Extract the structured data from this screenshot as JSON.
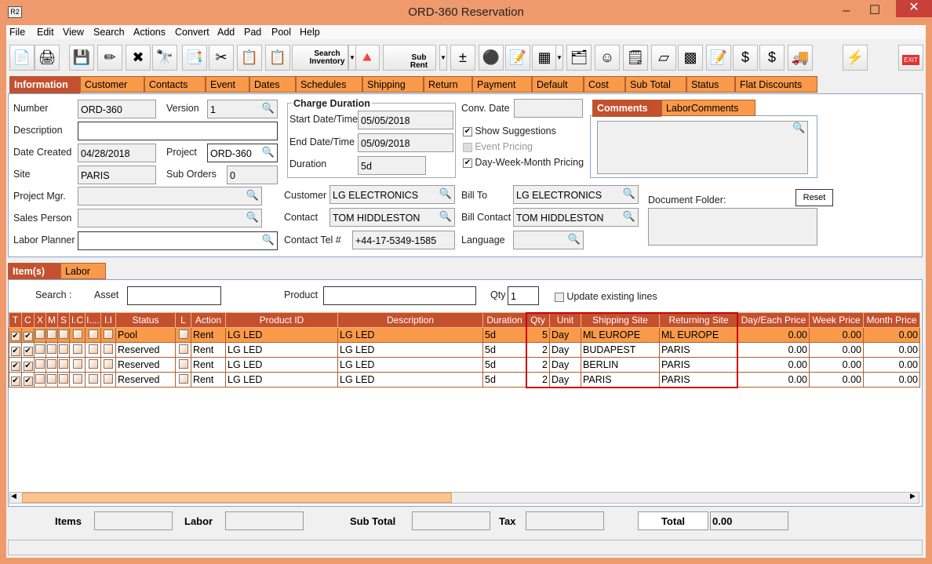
{
  "window": {
    "title": "ORD-360 Reservation",
    "app_icon": "R2",
    "minimize": "–",
    "maximize": "☐",
    "close": "✕"
  },
  "menu": [
    "File",
    "Edit",
    "View",
    "Search",
    "Actions",
    "Convert",
    "Add",
    "Pad",
    "Pool",
    "Help"
  ],
  "toolbar": {
    "search_inventory": "Search Inventory",
    "sub_rent": "Sub Rent",
    "exit": "EXIT",
    "icons": [
      "new-document-icon",
      "print-icon",
      "save-icon",
      "edit-pencil-icon",
      "delete-x-icon",
      "binoculars-icon",
      "copy-convert-icon",
      "cut-scissors-icon",
      "copy-icon",
      "paste-icon",
      "search-inventory-icon",
      "shapes-icon",
      "sub-rent-factory-icon",
      "add-remove-icon",
      "balls-icon",
      "notepad-icon",
      "calculator-icon",
      "hierarchy-icon",
      "smiley-icon",
      "notes-clock-icon",
      "eraser-icon",
      "cubes-icon",
      "form-pencil-icon",
      "money-arrow-icon",
      "money-notes-icon",
      "truck-icon",
      "lightning-icon"
    ]
  },
  "tabs": [
    "Information",
    "Customer",
    "Contacts",
    "Event",
    "Dates",
    "Schedules",
    "Shipping",
    "Return",
    "Payment",
    "Default",
    "Cost",
    "Sub Total",
    "Status",
    "Flat Discounts"
  ],
  "info": {
    "number_label": "Number",
    "number": "ORD-360",
    "version_label": "Version",
    "version": "1",
    "description_label": "Description",
    "description": "",
    "date_created_label": "Date Created",
    "date_created": "04/28/2018",
    "project_label": "Project",
    "project": "ORD-360",
    "site_label": "Site",
    "site": "PARIS",
    "sub_orders_label": "Sub Orders",
    "sub_orders": "0",
    "project_mgr_label": "Project Mgr.",
    "project_mgr": "",
    "sales_person_label": "Sales Person",
    "sales_person": "",
    "labor_planner_label": "Labor Planner",
    "labor_planner": "",
    "charge_duration_title": "Charge Duration",
    "start_label": "Start Date/Time",
    "start": "05/05/2018",
    "end_label": "End Date/Time",
    "end": "05/09/2018",
    "duration_label": "Duration",
    "duration": "5d",
    "customer_label": "Customer",
    "customer": "LG ELECTRONICS",
    "contact_label": "Contact",
    "contact": "TOM HIDDLESTON",
    "contact_tel_label": "Contact Tel #",
    "contact_tel": "+44-17-5349-1585",
    "conv_date_label": "Conv. Date",
    "conv_date": "",
    "show_suggestions": "Show Suggestions",
    "event_pricing": "Event Pricing",
    "dwm_pricing": "Day-Week-Month Pricing",
    "bill_to_label": "Bill To",
    "bill_to": "LG ELECTRONICS",
    "bill_contact_label": "Bill Contact",
    "bill_contact": "TOM HIDDLESTON",
    "language_label": "Language",
    "language": "",
    "comment_tabs": [
      "Comments",
      "LaborComments"
    ],
    "comments": "",
    "document_folder_label": "Document Folder:",
    "reset": "Reset"
  },
  "item_tabs": [
    "Item(s)",
    "Labor"
  ],
  "search": {
    "search_label": "Search :",
    "asset_label": "Asset",
    "asset": "",
    "product_label": "Product",
    "product": "",
    "qty_label": "Qty",
    "qty": "1",
    "update_existing": "Update existing lines"
  },
  "grid": {
    "columns": [
      "T",
      "C",
      "X",
      "M",
      "S",
      "I.C",
      "I....",
      "I.I",
      "Status",
      "L",
      "Action",
      "Product ID",
      "Description",
      "Duration",
      "Qty",
      "Unit",
      "Shipping Site",
      "Returning Site",
      "Day/Each Price",
      "Week Price",
      "Month Price"
    ],
    "rows": [
      {
        "status": "Pool",
        "action": "Rent",
        "product_id": "LG LED",
        "description": "LG LED",
        "duration": "5d",
        "qty": "5",
        "unit": "Day",
        "shipping": "ML EUROPE",
        "returning": "ML EUROPE",
        "day": "0.00",
        "week": "0.00",
        "month": "0.00"
      },
      {
        "status": "Reserved",
        "action": "Rent",
        "product_id": "LG LED",
        "description": "LG LED",
        "duration": "5d",
        "qty": "2",
        "unit": "Day",
        "shipping": "BUDAPEST",
        "returning": "PARIS",
        "day": "0.00",
        "week": "0.00",
        "month": "0.00"
      },
      {
        "status": "Reserved",
        "action": "Rent",
        "product_id": "LG LED",
        "description": "LG LED",
        "duration": "5d",
        "qty": "2",
        "unit": "Day",
        "shipping": "BERLIN",
        "returning": "PARIS",
        "day": "0.00",
        "week": "0.00",
        "month": "0.00"
      },
      {
        "status": "Reserved",
        "action": "Rent",
        "product_id": "LG LED",
        "description": "LG LED",
        "duration": "5d",
        "qty": "2",
        "unit": "Day",
        "shipping": "PARIS",
        "returning": "PARIS",
        "day": "0.00",
        "week": "0.00",
        "month": "0.00"
      }
    ]
  },
  "footer": {
    "items_label": "Items",
    "items": "",
    "labor_label": "Labor",
    "labor": "",
    "sub_total_label": "Sub Total",
    "sub_total": "",
    "tax_label": "Tax",
    "tax": "",
    "total_label": "Total",
    "total": "0.00"
  },
  "colors": {
    "accent": "#c4502e",
    "tab": "#f99a4a",
    "frame": "#ee9a6c",
    "highlight_box": "#cc0000"
  }
}
